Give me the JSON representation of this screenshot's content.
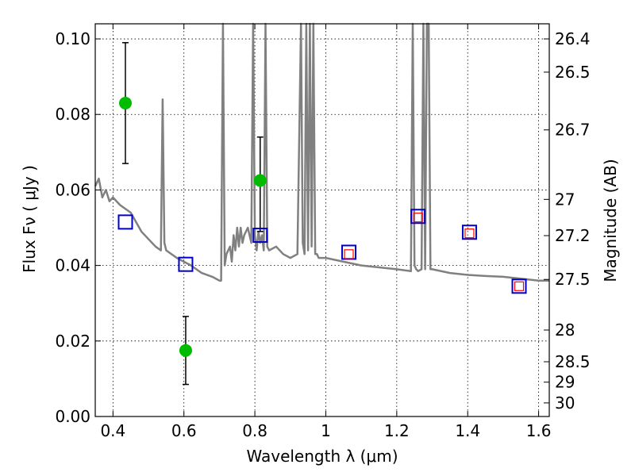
{
  "chart_data": {
    "type": "scatter",
    "xlabel": "Wavelength  λ (μm)",
    "ylabel": "Flux  Fν  ( μJy )",
    "ylabel_right": "Magnitude (AB)",
    "xlim": [
      0.35,
      1.63
    ],
    "ylim": [
      0.0,
      0.104
    ],
    "x_ticks": [
      0.4,
      0.6,
      0.8,
      1.0,
      1.2,
      1.4,
      1.6
    ],
    "x_tick_labels": [
      "0.4",
      "0.6",
      "0.8",
      "1",
      "1.2",
      "1.4",
      "1.6"
    ],
    "y_ticks": [
      0.0,
      0.02,
      0.04,
      0.06,
      0.08,
      0.1
    ],
    "y_tick_labels": [
      "0.00",
      "0.02",
      "0.04",
      "0.06",
      "0.08",
      "0.10"
    ],
    "right_ticks": [
      {
        "label": "26.4",
        "flux": 0.1
      },
      {
        "label": "26.5",
        "flux": 0.0912
      },
      {
        "label": "26.7",
        "flux": 0.0759
      },
      {
        "label": "27",
        "flux": 0.0575
      },
      {
        "label": "27.2",
        "flux": 0.0479
      },
      {
        "label": "27.5",
        "flux": 0.0363
      },
      {
        "label": "28",
        "flux": 0.0229
      },
      {
        "label": "28.5",
        "flux": 0.0145
      },
      {
        "label": "29",
        "flux": 0.0091
      },
      {
        "label": "30",
        "flux": 0.0036
      }
    ],
    "grid": true,
    "series": [
      {
        "kind": "line",
        "color": "#808080",
        "x": [
          0.35,
          0.36,
          0.37,
          0.38,
          0.39,
          0.4,
          0.42,
          0.45,
          0.48,
          0.5,
          0.52,
          0.535,
          0.54,
          0.545,
          0.55,
          0.58,
          0.6,
          0.62,
          0.65,
          0.68,
          0.7,
          0.705,
          0.71,
          0.715,
          0.72,
          0.73,
          0.735,
          0.74,
          0.745,
          0.75,
          0.755,
          0.76,
          0.765,
          0.77,
          0.78,
          0.79,
          0.795,
          0.8,
          0.805,
          0.81,
          0.815,
          0.82,
          0.825,
          0.83,
          0.835,
          0.84,
          0.86,
          0.88,
          0.9,
          0.92,
          0.93,
          0.935,
          0.94,
          0.945,
          0.95,
          0.955,
          0.96,
          0.965,
          0.97,
          0.975,
          0.98,
          1.0,
          1.05,
          1.1,
          1.15,
          1.2,
          1.24,
          1.245,
          1.25,
          1.255,
          1.26,
          1.27,
          1.275,
          1.28,
          1.285,
          1.29,
          1.295,
          1.3,
          1.35,
          1.4,
          1.45,
          1.5,
          1.55,
          1.6,
          1.63
        ],
        "y": [
          0.061,
          0.063,
          0.058,
          0.06,
          0.057,
          0.058,
          0.056,
          0.054,
          0.049,
          0.047,
          0.045,
          0.044,
          0.084,
          0.046,
          0.044,
          0.042,
          0.041,
          0.04,
          0.038,
          0.037,
          0.036,
          0.036,
          0.104,
          0.04,
          0.043,
          0.045,
          0.041,
          0.048,
          0.044,
          0.05,
          0.045,
          0.05,
          0.046,
          0.048,
          0.05,
          0.046,
          0.104,
          0.048,
          0.044,
          0.049,
          0.046,
          0.048,
          0.044,
          0.104,
          0.045,
          0.044,
          0.045,
          0.043,
          0.042,
          0.043,
          0.104,
          0.046,
          0.043,
          0.104,
          0.044,
          0.104,
          0.045,
          0.104,
          0.043,
          0.043,
          0.042,
          0.042,
          0.041,
          0.04,
          0.0395,
          0.039,
          0.0385,
          0.104,
          0.04,
          0.039,
          0.0385,
          0.039,
          0.104,
          0.039,
          0.104,
          0.104,
          0.039,
          0.039,
          0.038,
          0.0375,
          0.0372,
          0.037,
          0.0365,
          0.036,
          0.036
        ]
      },
      {
        "kind": "points_with_errors",
        "marker": "circle",
        "color": "#00bb00",
        "x": [
          0.435,
          0.605,
          0.815
        ],
        "y": [
          0.083,
          0.0175,
          0.0625
        ],
        "yerr_low": [
          0.067,
          0.0085,
          0.049
        ],
        "yerr_high": [
          0.099,
          0.0265,
          0.074
        ]
      },
      {
        "kind": "markers",
        "marker": "open-square",
        "color": "#0000cc",
        "x": [
          0.435,
          0.605,
          0.815,
          1.065,
          1.26,
          1.405,
          1.545
        ],
        "y": [
          0.0515,
          0.0403,
          0.048,
          0.0435,
          0.053,
          0.0488,
          0.0345
        ]
      },
      {
        "kind": "markers",
        "marker": "small-open-square",
        "color": "#ff0000",
        "x": [
          1.065,
          1.26,
          1.405,
          1.545
        ],
        "y": [
          0.043,
          0.0527,
          0.0485,
          0.0345
        ]
      }
    ]
  }
}
